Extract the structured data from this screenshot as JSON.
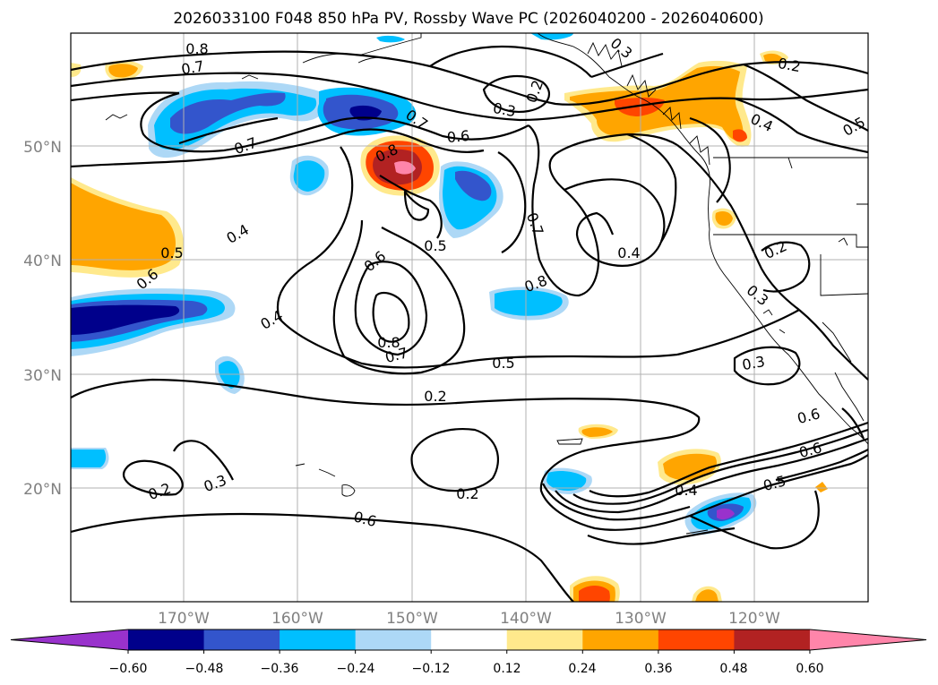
{
  "title": "2026033100 F048 850 hPa PV, Rossby Wave PC (2026040200 - 2026040600)",
  "axes": {
    "lat_labels": [
      "50°N",
      "40°N",
      "30°N",
      "20°N"
    ],
    "lon_labels": [
      "170°W",
      "160°W",
      "150°W",
      "140°W",
      "130°W",
      "120°W"
    ]
  },
  "colorbar": {
    "tick_labels": [
      "−0.60",
      "−0.48",
      "−0.36",
      "−0.24",
      "−0.12",
      "0.12",
      "0.24",
      "0.36",
      "0.48",
      "0.60"
    ],
    "colors": [
      "#9932cc",
      "#00008b",
      "#3355cc",
      "#00bfff",
      "#add8f6",
      "#ffffff",
      "#ffe98c",
      "#ffa500",
      "#ff4500",
      "#b22222",
      "#ff85aa"
    ]
  },
  "contour_labels": [
    {
      "id": "c1",
      "text": "0.8"
    },
    {
      "id": "c2",
      "text": "0.7"
    },
    {
      "id": "c3",
      "text": "0.7"
    },
    {
      "id": "c4",
      "text": "0.6"
    },
    {
      "id": "c5",
      "text": "0.8"
    },
    {
      "id": "c6",
      "text": "0.7"
    },
    {
      "id": "c7",
      "text": "0.3"
    },
    {
      "id": "c8",
      "text": "0.2"
    },
    {
      "id": "c9",
      "text": "0.3"
    },
    {
      "id": "c10",
      "text": "0.2"
    },
    {
      "id": "c11",
      "text": "0.4"
    },
    {
      "id": "c12",
      "text": "0.5"
    },
    {
      "id": "c13",
      "text": "0.4"
    },
    {
      "id": "c14",
      "text": "0.5"
    },
    {
      "id": "c15",
      "text": "0.6"
    },
    {
      "id": "c16",
      "text": "0.6"
    },
    {
      "id": "c17",
      "text": "0.4"
    },
    {
      "id": "c18",
      "text": "0.7"
    },
    {
      "id": "c19",
      "text": "0.8"
    },
    {
      "id": "c20",
      "text": "0.4"
    },
    {
      "id": "c21",
      "text": "0.2"
    },
    {
      "id": "c22",
      "text": "0.3"
    },
    {
      "id": "c23",
      "text": "0.8"
    },
    {
      "id": "c24",
      "text": "0.7"
    },
    {
      "id": "c25",
      "text": "0.5"
    },
    {
      "id": "c26",
      "text": "0.5"
    },
    {
      "id": "c27",
      "text": "0.3"
    },
    {
      "id": "c28",
      "text": "0.2"
    },
    {
      "id": "c29",
      "text": "0.2"
    },
    {
      "id": "c30",
      "text": "0.3"
    },
    {
      "id": "c31",
      "text": "0.2"
    },
    {
      "id": "c32",
      "text": "0.6"
    },
    {
      "id": "c33",
      "text": "0.4"
    },
    {
      "id": "c34",
      "text": "0.5"
    },
    {
      "id": "c35",
      "text": "0.6"
    }
  ]
}
